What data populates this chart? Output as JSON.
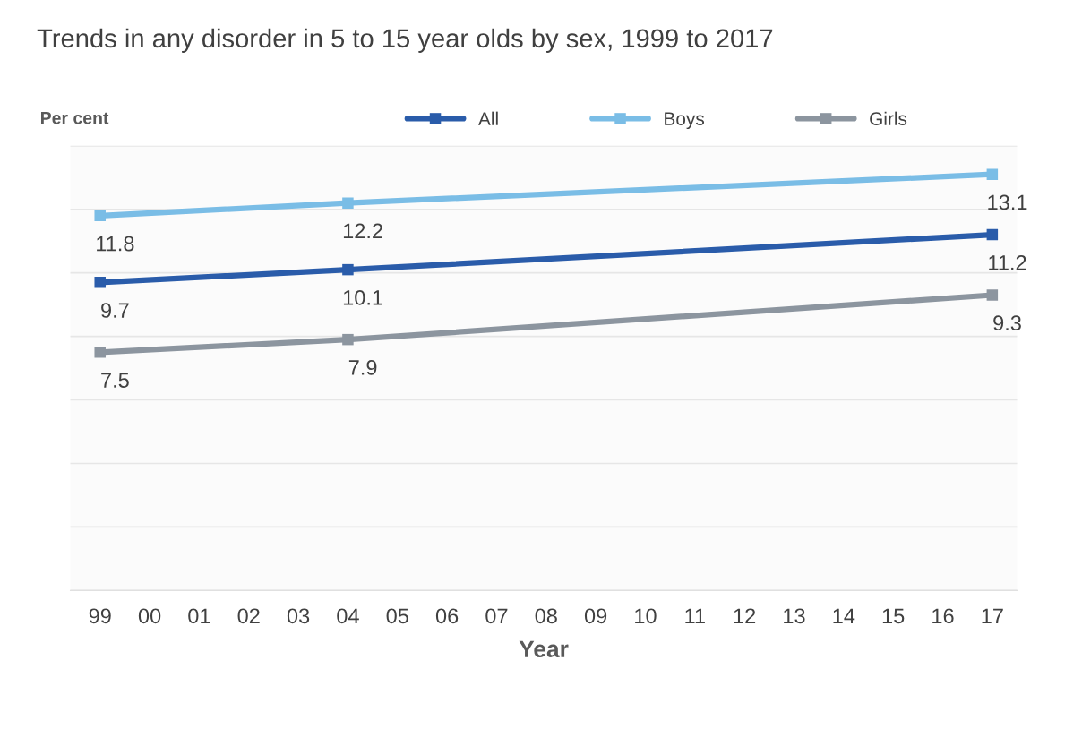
{
  "chart_data": {
    "type": "line",
    "title": "Trends in any disorder in 5 to 15 year olds by sex, 1999 to 2017",
    "ylabel": "Per cent",
    "xlabel": "Year",
    "series": [
      {
        "name": "All",
        "color": "#2a5caa",
        "x": [
          1999,
          2004,
          2017
        ],
        "values": [
          9.7,
          10.1,
          11.2
        ]
      },
      {
        "name": "Boys",
        "color": "#7abde6",
        "x": [
          1999,
          2004,
          2017
        ],
        "values": [
          11.8,
          12.2,
          13.1
        ]
      },
      {
        "name": "Girls",
        "color": "#8c959f",
        "x": [
          1999,
          2004,
          2017
        ],
        "values": [
          7.5,
          7.9,
          9.3
        ]
      }
    ],
    "xlim": [
      1998.4,
      2017.5
    ],
    "xticks": [
      {
        "value": 1999,
        "label": "99"
      },
      {
        "value": 2000,
        "label": "00"
      },
      {
        "value": 2001,
        "label": "01"
      },
      {
        "value": 2002,
        "label": "02"
      },
      {
        "value": 2003,
        "label": "03"
      },
      {
        "value": 2004,
        "label": "04"
      },
      {
        "value": 2005,
        "label": "05"
      },
      {
        "value": 2006,
        "label": "06"
      },
      {
        "value": 2007,
        "label": "07"
      },
      {
        "value": 2008,
        "label": "08"
      },
      {
        "value": 2009,
        "label": "09"
      },
      {
        "value": 2010,
        "label": "10"
      },
      {
        "value": 2011,
        "label": "11"
      },
      {
        "value": 2012,
        "label": "12"
      },
      {
        "value": 2013,
        "label": "13"
      },
      {
        "value": 2014,
        "label": "14"
      },
      {
        "value": 2015,
        "label": "15"
      },
      {
        "value": 2016,
        "label": "16"
      },
      {
        "value": 2017,
        "label": "17"
      }
    ],
    "ylim": [
      0,
      14
    ],
    "yticks": [
      {
        "value": 0,
        "label": null
      },
      {
        "value": 2,
        "label": null
      },
      {
        "value": 4,
        "label": null
      },
      {
        "value": 6,
        "label": null
      },
      {
        "value": 8,
        "label": null
      },
      {
        "value": 10,
        "label": null
      },
      {
        "value": 12,
        "label": null
      },
      {
        "value": 14,
        "label": null
      }
    ],
    "tick_labels": "x",
    "grid": "y",
    "legend": "top",
    "marker": "square",
    "line_style": "solid",
    "data_labels": true
  }
}
